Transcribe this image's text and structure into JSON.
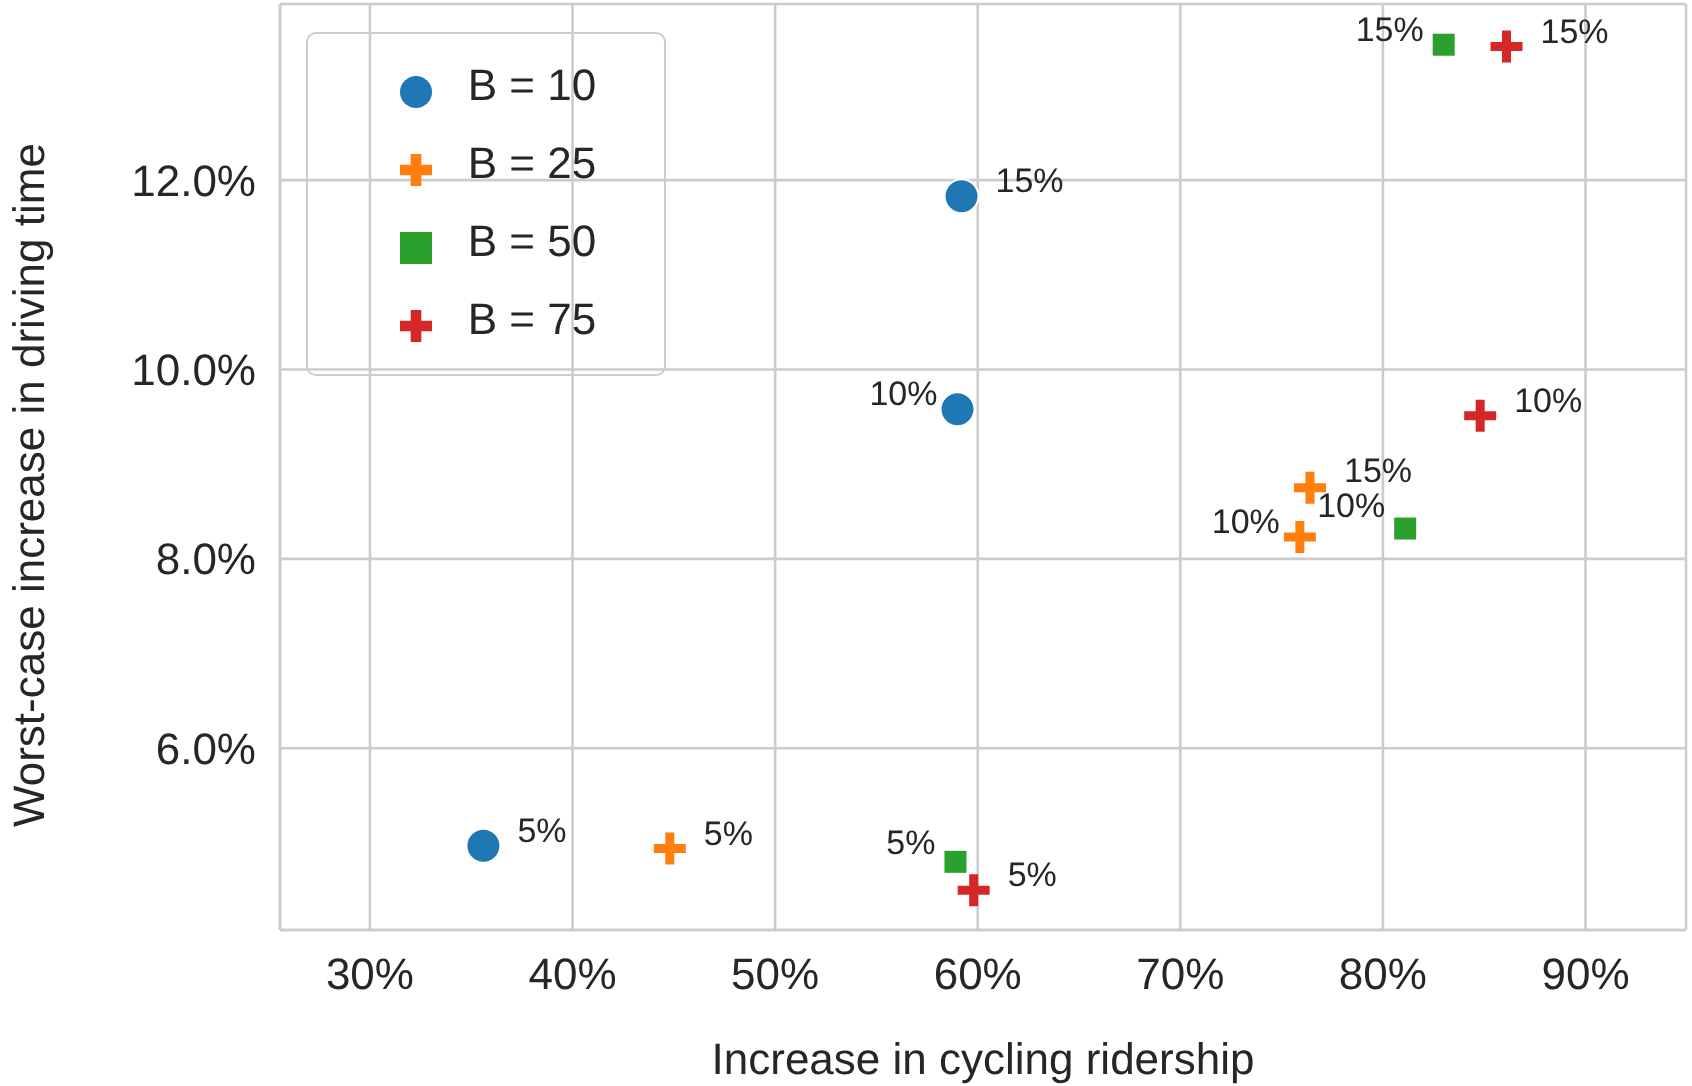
{
  "chart_data": {
    "type": "scatter",
    "xlabel": "Increase in cycling ridership",
    "ylabel": "Worst-case increase in driving time",
    "xlim": [
      25.56,
      94.96
    ],
    "ylim": [
      4.08,
      13.86
    ],
    "xticks": [
      {
        "value": 30,
        "label": "30%"
      },
      {
        "value": 40,
        "label": "40%"
      },
      {
        "value": 50,
        "label": "50%"
      },
      {
        "value": 60,
        "label": "60%"
      },
      {
        "value": 70,
        "label": "70%"
      },
      {
        "value": 80,
        "label": "80%"
      },
      {
        "value": 90,
        "label": "90%"
      }
    ],
    "yticks": [
      {
        "value": 6,
        "label": "6.0%"
      },
      {
        "value": 8,
        "label": "8.0%"
      },
      {
        "value": 10,
        "label": "10.0%"
      },
      {
        "value": 12,
        "label": "12.0%"
      }
    ],
    "grid": true,
    "legend": "top left",
    "series": [
      {
        "name": "B = 10",
        "color": "#1f77b4",
        "marker": "circle",
        "x": [
          35.6,
          59.0,
          59.2
        ],
        "values": [
          4.97,
          9.58,
          11.83
        ]
      },
      {
        "name": "B = 25",
        "color": "#ff7f0e",
        "marker": "cross",
        "x": [
          44.8,
          75.9,
          76.4
        ],
        "values": [
          4.94,
          8.23,
          8.75
        ]
      },
      {
        "name": "B = 50",
        "color": "#2ca02c",
        "marker": "square",
        "x": [
          58.9,
          81.1,
          83.0
        ],
        "values": [
          4.8,
          8.32,
          13.43
        ]
      },
      {
        "name": "B = 75",
        "color": "#d62728",
        "marker": "cross",
        "x": [
          59.8,
          84.8,
          86.1
        ],
        "values": [
          4.5,
          9.51,
          13.41
        ]
      }
    ],
    "annotations": [
      {
        "text": "5%",
        "x": 35.6,
        "y": 4.97
      },
      {
        "text": "10%",
        "x": 59.0,
        "y": 9.58
      },
      {
        "text": "15%",
        "x": 59.2,
        "y": 11.83
      },
      {
        "text": "5%",
        "x": 44.8,
        "y": 4.94
      },
      {
        "text": "10%",
        "x": 75.9,
        "y": 8.23
      },
      {
        "text": "15%",
        "x": 76.4,
        "y": 8.75
      },
      {
        "text": "5%",
        "x": 58.9,
        "y": 4.8
      },
      {
        "text": "10%",
        "x": 81.1,
        "y": 8.32
      },
      {
        "text": "15%",
        "x": 83.0,
        "y": 13.43
      },
      {
        "text": "5%",
        "x": 59.8,
        "y": 4.5
      },
      {
        "text": "10%",
        "x": 84.8,
        "y": 9.51
      },
      {
        "text": "15%",
        "x": 86.1,
        "y": 13.41
      }
    ]
  }
}
